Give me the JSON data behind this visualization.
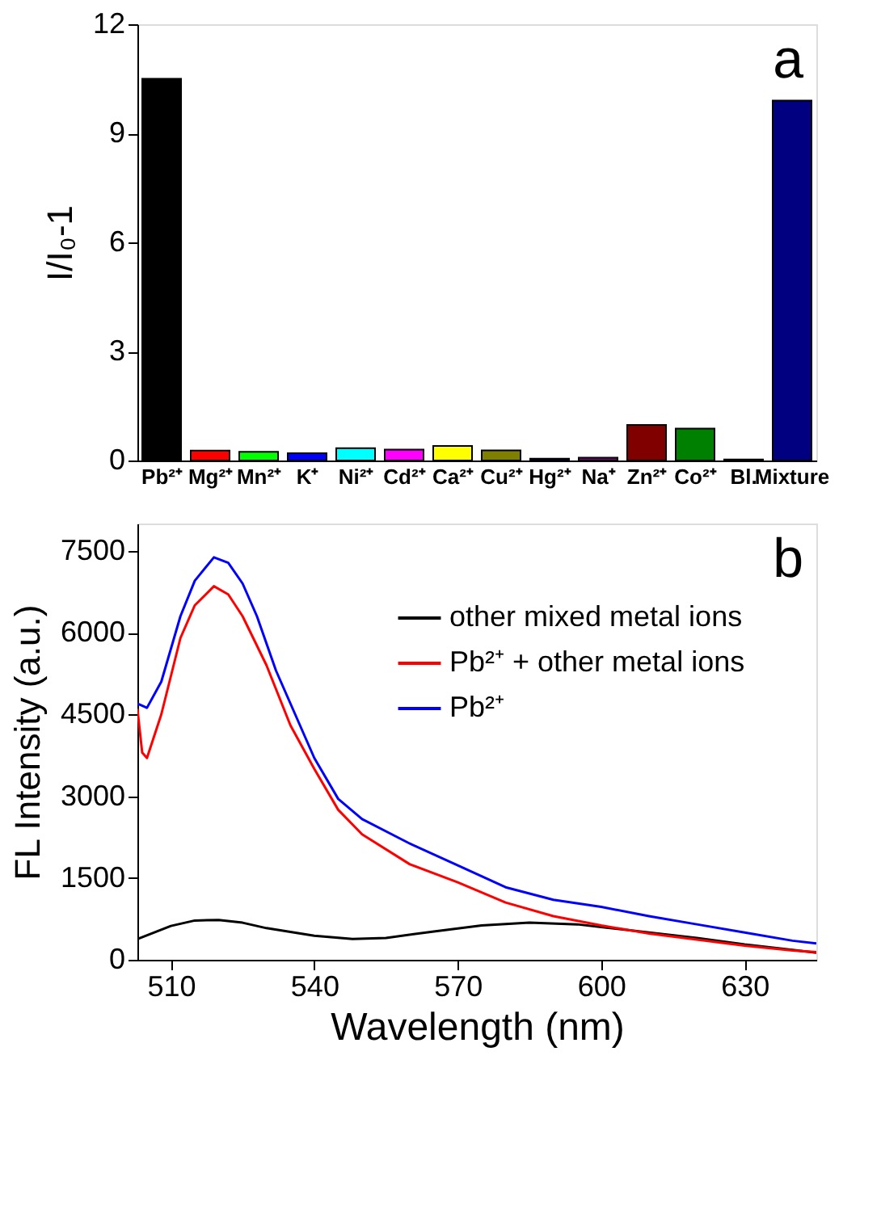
{
  "chart_data": [
    {
      "type": "bar",
      "ylabel": "I/I₀-1",
      "annotations": [
        "a"
      ],
      "categories": [
        "Pb²⁺",
        "Mg²⁺",
        "Mn²⁺",
        "K⁺",
        "Ni²⁺",
        "Cd²⁺",
        "Ca²⁺",
        "Cu²⁺",
        "Hg²⁺",
        "Na⁺",
        "Zn²⁺",
        "Co²⁺",
        "Bl.",
        "Mixture"
      ],
      "values": [
        10.5,
        0.27,
        0.24,
        0.2,
        0.34,
        0.3,
        0.4,
        0.28,
        0.05,
        0.08,
        0.98,
        0.88,
        0.03,
        9.9
      ],
      "colors": [
        "#000000",
        "#ff0000",
        "#00ff00",
        "#0000ff",
        "#00ffff",
        "#ff00ff",
        "#ffff00",
        "#808000",
        "#000080",
        "#800080",
        "#800000",
        "#008000",
        "#008080",
        "#000080"
      ],
      "ylim": [
        0,
        12
      ],
      "yticks": [
        0,
        3,
        6,
        9,
        12
      ],
      "grid": false
    },
    {
      "type": "line",
      "xlabel": "Wavelength (nm)",
      "ylabel": "FL Intensity (a.u.)",
      "annotations": [
        "b"
      ],
      "xlim": [
        503,
        645
      ],
      "xticks": [
        510,
        540,
        570,
        600,
        630
      ],
      "ylim": [
        0,
        8000
      ],
      "yticks": [
        0,
        1500,
        3000,
        4500,
        6000,
        7500
      ],
      "grid": false,
      "legend": "top right",
      "line_style": "solid",
      "marker": "none",
      "series": [
        {
          "name": "other mixed metal ions",
          "color": "#000000",
          "x": [
            503,
            510,
            515,
            520,
            525,
            530,
            540,
            548,
            555,
            565,
            575,
            585,
            595,
            600,
            610,
            620,
            630,
            640,
            645
          ],
          "values": [
            380,
            620,
            720,
            730,
            680,
            580,
            440,
            380,
            400,
            520,
            630,
            680,
            650,
            600,
            500,
            400,
            280,
            180,
            130
          ]
        },
        {
          "name": "Pb²⁺ + other metal ions",
          "color": "#ff0000",
          "x": [
            503,
            504,
            505,
            508,
            512,
            515,
            519,
            522,
            525,
            530,
            535,
            540,
            545,
            550,
            560,
            570,
            580,
            590,
            600,
            610,
            620,
            630,
            640,
            645
          ],
          "values": [
            4600,
            3800,
            3700,
            4500,
            5900,
            6500,
            6850,
            6700,
            6300,
            5400,
            4300,
            3500,
            2750,
            2300,
            1750,
            1420,
            1050,
            800,
            630,
            480,
            370,
            260,
            170,
            140
          ]
        },
        {
          "name": "Pb²⁺",
          "color": "#0000ff",
          "x": [
            503,
            505,
            508,
            512,
            515,
            519,
            522,
            525,
            528,
            532,
            535,
            540,
            545,
            550,
            560,
            570,
            580,
            590,
            600,
            610,
            620,
            630,
            640,
            645
          ],
          "values": [
            4700,
            4620,
            5100,
            6300,
            6950,
            7380,
            7280,
            6900,
            6300,
            5300,
            4700,
            3700,
            2950,
            2580,
            2130,
            1730,
            1330,
            1100,
            970,
            800,
            650,
            500,
            350,
            300
          ]
        }
      ]
    }
  ]
}
